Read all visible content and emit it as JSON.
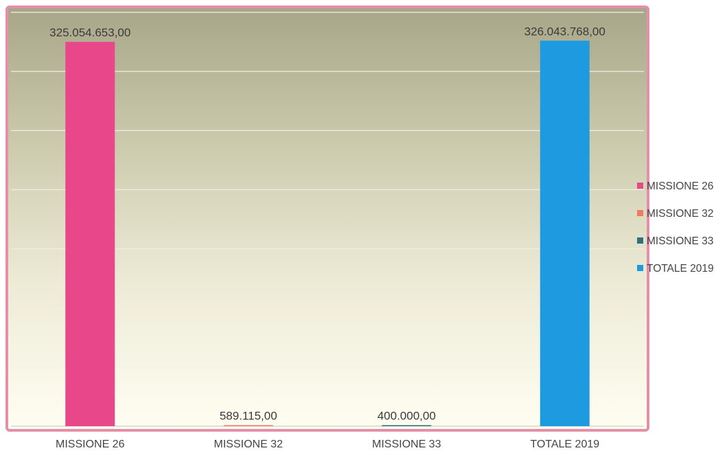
{
  "chart_data": {
    "type": "bar",
    "categories": [
      "MISSIONE 26",
      "MISSIONE 32",
      "MISSIONE 33",
      "TOTALE 2019"
    ],
    "values": [
      325054653,
      589115,
      400000,
      326043768
    ],
    "data_labels": [
      "325.054.653,00",
      "589.115,00",
      "400.000,00",
      "326.043.768,00"
    ],
    "colors": [
      "#E8488A",
      "#F07A62",
      "#2E6F80",
      "#1E9BE0"
    ],
    "title": "",
    "xlabel": "",
    "ylabel": "",
    "ylim": [
      0,
      350000000
    ],
    "y_gridlines": [
      0,
      50000000,
      100000000,
      150000000,
      200000000,
      250000000,
      300000000,
      350000000
    ],
    "grid": true,
    "y_tick_labels_shown": false,
    "legend_position": "right",
    "legend": [
      "MISSIONE 26",
      "MISSIONE 32",
      "MISSIONE 33",
      "TOTALE 2019"
    ],
    "background_gradient": [
      "#A8A688",
      "#FFFEF2"
    ],
    "frame_color": "#E58FA8"
  }
}
